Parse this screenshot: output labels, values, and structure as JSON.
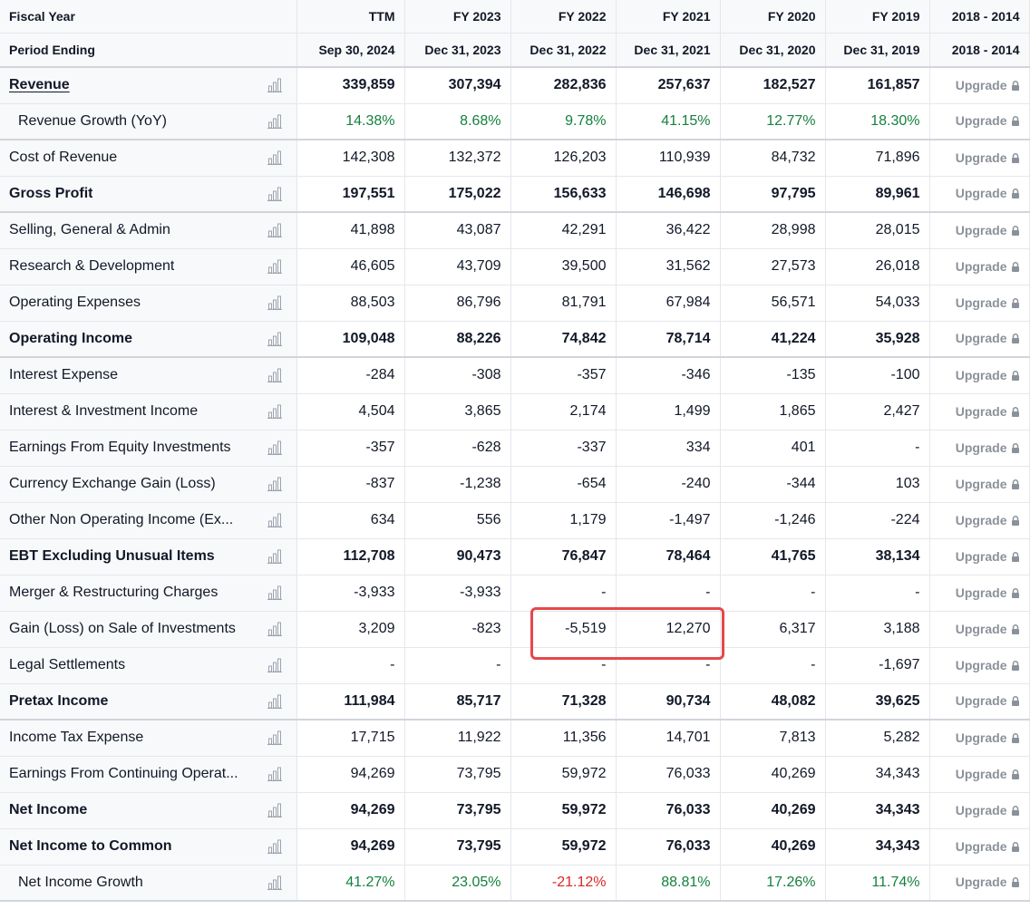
{
  "header": {
    "fiscal_year_label": "Fiscal Year",
    "period_ending_label": "Period Ending",
    "columns": [
      {
        "fiscal": "TTM",
        "period": "Sep 30, 2024"
      },
      {
        "fiscal": "FY 2023",
        "period": "Dec 31, 2023"
      },
      {
        "fiscal": "FY 2022",
        "period": "Dec 31, 2022"
      },
      {
        "fiscal": "FY 2021",
        "period": "Dec 31, 2021"
      },
      {
        "fiscal": "FY 2020",
        "period": "Dec 31, 2020"
      },
      {
        "fiscal": "FY 2019",
        "period": "Dec 31, 2019"
      },
      {
        "fiscal": "2018 - 2014",
        "period": "2018 - 2014"
      }
    ]
  },
  "upgrade_label": "Upgrade",
  "icons": {
    "chart": "bar-chart-icon",
    "lock": "lock-icon"
  },
  "colors": {
    "positive": "#15803d",
    "negative": "#dc2626",
    "highlight": "#e5484d"
  },
  "rows": [
    {
      "label": "Revenue",
      "values": [
        "339,859",
        "307,394",
        "282,836",
        "257,637",
        "182,527",
        "161,857"
      ]
    },
    {
      "label": "Revenue Growth (YoY)",
      "values": [
        "14.38%",
        "8.68%",
        "9.78%",
        "41.15%",
        "12.77%",
        "18.30%"
      ]
    },
    {
      "label": "Cost of Revenue",
      "values": [
        "142,308",
        "132,372",
        "126,203",
        "110,939",
        "84,732",
        "71,896"
      ]
    },
    {
      "label": "Gross Profit",
      "values": [
        "197,551",
        "175,022",
        "156,633",
        "146,698",
        "97,795",
        "89,961"
      ]
    },
    {
      "label": "Selling, General & Admin",
      "values": [
        "41,898",
        "43,087",
        "42,291",
        "36,422",
        "28,998",
        "28,015"
      ]
    },
    {
      "label": "Research & Development",
      "values": [
        "46,605",
        "43,709",
        "39,500",
        "31,562",
        "27,573",
        "26,018"
      ]
    },
    {
      "label": "Operating Expenses",
      "values": [
        "88,503",
        "86,796",
        "81,791",
        "67,984",
        "56,571",
        "54,033"
      ]
    },
    {
      "label": "Operating Income",
      "values": [
        "109,048",
        "88,226",
        "74,842",
        "78,714",
        "41,224",
        "35,928"
      ]
    },
    {
      "label": "Interest Expense",
      "values": [
        "-284",
        "-308",
        "-357",
        "-346",
        "-135",
        "-100"
      ]
    },
    {
      "label": "Interest & Investment Income",
      "values": [
        "4,504",
        "3,865",
        "2,174",
        "1,499",
        "1,865",
        "2,427"
      ]
    },
    {
      "label": "Earnings From Equity Investments",
      "values": [
        "-357",
        "-628",
        "-337",
        "334",
        "401",
        "-"
      ]
    },
    {
      "label": "Currency Exchange Gain (Loss)",
      "values": [
        "-837",
        "-1,238",
        "-654",
        "-240",
        "-344",
        "103"
      ]
    },
    {
      "label": "Other Non Operating Income (Ex...",
      "values": [
        "634",
        "556",
        "1,179",
        "-1,497",
        "-1,246",
        "-224"
      ]
    },
    {
      "label": "EBT Excluding Unusual Items",
      "values": [
        "112,708",
        "90,473",
        "76,847",
        "78,464",
        "41,765",
        "38,134"
      ]
    },
    {
      "label": "Merger & Restructuring Charges",
      "values": [
        "-3,933",
        "-3,933",
        "-",
        "-",
        "-",
        "-"
      ]
    },
    {
      "label": "Gain (Loss) on Sale of Investments",
      "values": [
        "3,209",
        "-823",
        "-5,519",
        "12,270",
        "6,317",
        "3,188"
      ]
    },
    {
      "label": "Legal Settlements",
      "values": [
        "-",
        "-",
        "-",
        "-",
        "-",
        "-1,697"
      ]
    },
    {
      "label": "Pretax Income",
      "values": [
        "111,984",
        "85,717",
        "71,328",
        "90,734",
        "48,082",
        "39,625"
      ]
    },
    {
      "label": "Income Tax Expense",
      "values": [
        "17,715",
        "11,922",
        "11,356",
        "14,701",
        "7,813",
        "5,282"
      ]
    },
    {
      "label": "Earnings From Continuing Operat...",
      "values": [
        "94,269",
        "73,795",
        "59,972",
        "76,033",
        "40,269",
        "34,343"
      ]
    },
    {
      "label": "Net Income",
      "values": [
        "94,269",
        "73,795",
        "59,972",
        "76,033",
        "40,269",
        "34,343"
      ]
    },
    {
      "label": "Net Income to Common",
      "values": [
        "94,269",
        "73,795",
        "59,972",
        "76,033",
        "40,269",
        "34,343"
      ]
    },
    {
      "label": "Net Income Growth",
      "values": [
        "41.27%",
        "23.05%",
        "-21.12%",
        "88.81%",
        "17.26%",
        "11.74%"
      ]
    }
  ]
}
